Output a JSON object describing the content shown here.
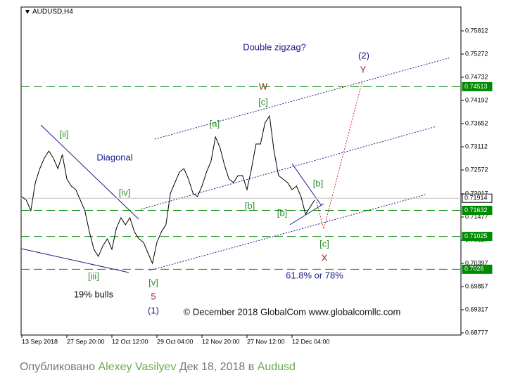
{
  "chart_data": {
    "type": "line",
    "title": "AUDUSD,H4",
    "categories": [
      "13 Sep 2018",
      null,
      null,
      null,
      null,
      null,
      null,
      null,
      null,
      null,
      "27 Sep 20:00",
      null,
      null,
      null,
      null,
      null,
      null,
      null,
      null,
      null,
      "12 Oct 12:00",
      null,
      null,
      null,
      null,
      null,
      null,
      null,
      null,
      null,
      "29 Oct 04:00",
      null,
      null,
      null,
      null,
      null,
      null,
      null,
      null,
      null,
      "12 Nov 20:00",
      null,
      null,
      null,
      null,
      null,
      null,
      null,
      null,
      null,
      "27 Nov 12:00",
      null,
      null,
      null,
      null,
      null,
      null,
      null,
      null,
      null,
      "12 Dec 04:00",
      null,
      null,
      null,
      null,
      null
    ],
    "series": [
      {
        "color": "#000000",
        "values": [
          0.71951,
          0.71869,
          0.71624,
          0.72278,
          0.72605,
          0.72851,
          0.73014,
          0.72851,
          0.72605,
          0.72932,
          0.7236,
          0.72196,
          0.72114,
          0.71869,
          0.71624,
          0.71133,
          0.70724,
          0.7056,
          0.70806,
          0.70969,
          0.70724,
          0.71215,
          0.7146,
          0.71296,
          0.7146,
          0.71133,
          0.70969,
          0.70888,
          0.70642,
          0.70397,
          0.70888,
          0.71133,
          0.71296,
          0.72033,
          0.72278,
          0.72523,
          0.72605,
          0.7236,
          0.72033,
          0.71951,
          0.72196,
          0.72523,
          0.72769,
          0.73341,
          0.73096,
          0.72687,
          0.7236,
          0.72278,
          0.72442,
          0.72442,
          0.72114,
          0.72605,
          0.73178,
          0.73178,
          0.73669,
          0.73832,
          0.73014,
          0.72442,
          0.7236,
          0.72278,
          0.72114,
          0.72196,
          0.71951,
          0.71542,
          0.71705,
          0.71869
        ]
      }
    ],
    "ylim": [
      0.68728,
      0.76368
    ],
    "yticks": [
      0.75812,
      0.75272,
      0.74732,
      0.74192,
      0.73652,
      0.73112,
      0.72572,
      0.72017,
      0.71477,
      0.70937,
      0.70397,
      0.69857,
      0.69317,
      0.68777
    ],
    "levels": [
      {
        "value": 0.74513,
        "color": "#008a00"
      },
      {
        "value": 0.71914,
        "color": "#c0c0c0"
      },
      {
        "value": 0.71632,
        "color": "#008a00"
      },
      {
        "value": 0.71025,
        "color": "#008a00"
      },
      {
        "value": 0.7026,
        "color": "#008a00"
      }
    ],
    "annotations": [
      "Double zigzag?",
      "(2)",
      "Y",
      "W",
      "[c]",
      "[a]",
      "[ii]",
      "Diagonal",
      "[iv]",
      "[b]",
      "[b]",
      "[b]",
      "[iii]",
      "19% bulls",
      "[v]",
      "5",
      "(1)",
      "[c]",
      "X",
      "61.8% or 78%",
      "© December 2018 GlobalCom www.globalcomllc.com"
    ]
  },
  "footer": {
    "prefix": "Опубликовано",
    "author": "Alexey Vasilyev",
    "date": "Дек 18, 2018 в",
    "symbol": "Audusd"
  }
}
